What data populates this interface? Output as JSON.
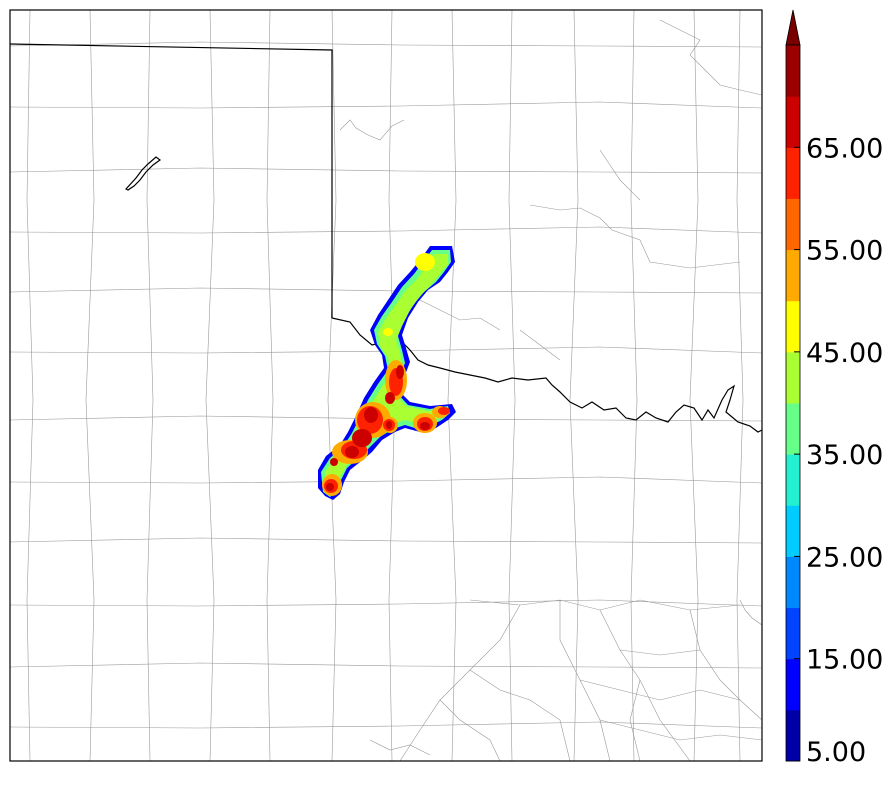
{
  "colorbar": {
    "colors": [
      "#0000a8",
      "#0000ff",
      "#0044ff",
      "#0088ff",
      "#00ccff",
      "#22f0d0",
      "#66ff88",
      "#aaff33",
      "#ffff00",
      "#ffaa00",
      "#ff6600",
      "#ff2200",
      "#cc0000",
      "#9a0000"
    ],
    "extend_color": "#7a0000",
    "tick_labels": [
      "5.00",
      "15.00",
      "25.00",
      "35.00",
      "45.00",
      "55.00",
      "65.00"
    ]
  },
  "map": {
    "county_line_color": "#999999",
    "state_line_color": "#000000"
  }
}
